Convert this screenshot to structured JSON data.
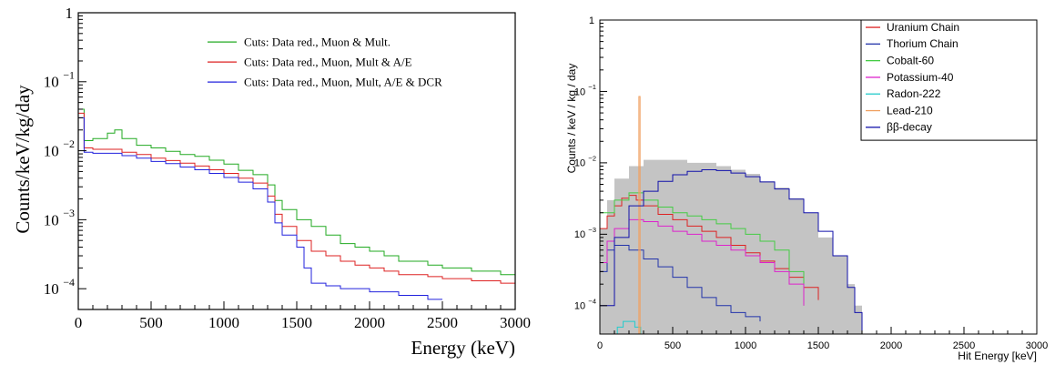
{
  "chart_data": [
    {
      "type": "line",
      "panel": "left",
      "title": "",
      "xlabel": "Energy (keV)",
      "ylabel": "Counts/keV/kg/day",
      "xlim": [
        0,
        3000
      ],
      "ylim": [
        5e-05,
        1
      ],
      "yscale": "log",
      "grid": false,
      "legend_position": "top-right",
      "x_ticks": [
        0,
        500,
        1000,
        1500,
        2000,
        2500,
        3000
      ],
      "x_tick_labels": [
        "0",
        "500",
        "1000",
        "1500",
        "2000",
        "2500",
        "3000"
      ],
      "y_ticks": [
        1,
        0.1,
        0.01,
        0.001,
        0.0001
      ],
      "y_tick_labels": [
        {
          "base": "1",
          "exp": ""
        },
        {
          "base": "10",
          "exp": "−1"
        },
        {
          "base": "10",
          "exp": "−2"
        },
        {
          "base": "10",
          "exp": "−3"
        },
        {
          "base": "10",
          "exp": "−4"
        }
      ],
      "series": [
        {
          "name": "Cuts: Data red., Muon & Mult.",
          "color": "#22aa22",
          "x": [
            0,
            40,
            100,
            200,
            250,
            300,
            400,
            500,
            600,
            700,
            800,
            900,
            1000,
            1100,
            1200,
            1300,
            1350,
            1400,
            1500,
            1600,
            1700,
            1800,
            1900,
            2000,
            2100,
            2200,
            2300,
            2400,
            2500,
            2600,
            2700,
            2800,
            2900,
            3000
          ],
          "y": [
            0.04,
            0.014,
            0.015,
            0.018,
            0.02,
            0.015,
            0.012,
            0.011,
            0.0098,
            0.0088,
            0.0083,
            0.0073,
            0.0064,
            0.0052,
            0.0045,
            0.0032,
            0.0019,
            0.0014,
            0.001,
            0.0008,
            0.0006,
            0.00045,
            0.0004,
            0.00035,
            0.0003,
            0.00025,
            0.00025,
            0.00022,
            0.0002,
            0.0002,
            0.00018,
            0.00018,
            0.00016,
            0.00016
          ]
        },
        {
          "name": "Cuts: Data red., Muon, Mult & A/E",
          "color": "#dd2222",
          "x": [
            0,
            40,
            100,
            200,
            300,
            400,
            500,
            600,
            700,
            800,
            900,
            1000,
            1100,
            1200,
            1300,
            1350,
            1400,
            1500,
            1600,
            1700,
            1800,
            1900,
            2000,
            2100,
            2200,
            2300,
            2400,
            2500,
            2600,
            2700,
            2800,
            2900,
            3000
          ],
          "y": [
            0.035,
            0.011,
            0.0105,
            0.0105,
            0.0095,
            0.0088,
            0.0078,
            0.0072,
            0.0066,
            0.006,
            0.0053,
            0.0047,
            0.004,
            0.0034,
            0.0022,
            0.0012,
            0.0008,
            0.0005,
            0.00035,
            0.0003,
            0.00025,
            0.00022,
            0.0002,
            0.00018,
            0.00016,
            0.00016,
            0.00015,
            0.00014,
            0.00014,
            0.00013,
            0.00013,
            0.00012,
            0.00012
          ]
        },
        {
          "name": "Cuts: Data red., Muon, Mult, A/E & DCR",
          "color": "#2222dd",
          "x": [
            0,
            40,
            100,
            200,
            300,
            400,
            500,
            600,
            700,
            800,
            900,
            1000,
            1100,
            1200,
            1300,
            1350,
            1400,
            1500,
            1550,
            1600,
            1700,
            1800,
            1900,
            2000,
            2100,
            2200,
            2300,
            2400,
            2500
          ],
          "y": [
            0.03,
            0.0095,
            0.0092,
            0.0092,
            0.0085,
            0.0078,
            0.007,
            0.0065,
            0.0058,
            0.0053,
            0.0047,
            0.0041,
            0.0035,
            0.0028,
            0.0018,
            0.0009,
            0.0006,
            0.0004,
            0.0002,
            0.00012,
            0.00011,
            0.0001,
            0.0001,
            9e-05,
            9e-05,
            8e-05,
            8e-05,
            7e-05,
            7e-05
          ]
        }
      ]
    },
    {
      "type": "line",
      "panel": "right",
      "title": "",
      "xlabel": "Hit Energy [keV]",
      "ylabel": "Counts / keV / kg / day",
      "xlim": [
        0,
        3000
      ],
      "ylim": [
        4e-05,
        1
      ],
      "yscale": "log",
      "grid": false,
      "legend_position": "top-right",
      "x_ticks": [
        0,
        500,
        1000,
        1500,
        2000,
        2500,
        3000
      ],
      "x_tick_labels": [
        "0",
        "500",
        "1000",
        "1500",
        "2000",
        "2500",
        "3000"
      ],
      "y_ticks": [
        1,
        0.1,
        0.01,
        0.001,
        0.0001
      ],
      "y_tick_labels": [
        {
          "base": "1",
          "exp": ""
        },
        {
          "base": "10",
          "exp": "−1"
        },
        {
          "base": "10",
          "exp": "−2"
        },
        {
          "base": "10",
          "exp": "−3"
        },
        {
          "base": "10",
          "exp": "−4"
        }
      ],
      "background_total": {
        "color": "#c4c4c4",
        "x": [
          0,
          50,
          100,
          200,
          300,
          400,
          500,
          600,
          700,
          800,
          900,
          1000,
          1100,
          1200,
          1300,
          1400,
          1500,
          1600,
          1700,
          1750,
          1800
        ],
        "y": [
          0.0012,
          0.003,
          0.006,
          0.009,
          0.011,
          0.011,
          0.011,
          0.01,
          0.01,
          0.009,
          0.008,
          0.007,
          0.0055,
          0.0045,
          0.0032,
          0.002,
          0.0009,
          0.0005,
          0.0002,
          0.0001,
          5e-05
        ]
      },
      "series": [
        {
          "name": "Uranium Chain",
          "color": "#dd2222",
          "x": [
            0,
            50,
            100,
            150,
            200,
            250,
            300,
            400,
            500,
            600,
            700,
            800,
            900,
            1000,
            1100,
            1200,
            1300,
            1400,
            1500
          ],
          "y": [
            0.0012,
            0.0018,
            0.0025,
            0.0032,
            0.0035,
            0.003,
            0.0025,
            0.0019,
            0.0016,
            0.0013,
            0.0011,
            0.0009,
            0.0007,
            0.00055,
            0.00042,
            0.00033,
            0.00025,
            0.00018,
            0.00012
          ]
        },
        {
          "name": "Thorium Chain",
          "color": "#2233aa",
          "x": [
            0,
            50,
            100,
            200,
            300,
            400,
            500,
            600,
            700,
            800,
            900,
            1000,
            1100
          ],
          "y": [
            0.0003,
            0.0006,
            0.0007,
            0.0006,
            0.00045,
            0.00035,
            0.00025,
            0.00018,
            0.00013,
            0.0001,
            8e-05,
            7e-05,
            6e-05
          ]
        },
        {
          "name": "Cobalt-60",
          "color": "#44cc44",
          "x": [
            0,
            100,
            200,
            300,
            400,
            500,
            600,
            700,
            800,
            900,
            1000,
            1100,
            1200,
            1300,
            1400
          ],
          "y": [
            0.002,
            0.003,
            0.0038,
            0.003,
            0.0024,
            0.002,
            0.0018,
            0.0016,
            0.0014,
            0.0012,
            0.001,
            0.0008,
            0.0006,
            0.0003,
            0.0001
          ]
        },
        {
          "name": "Potassium-40",
          "color": "#dd22cc",
          "x": [
            0,
            50,
            100,
            200,
            300,
            400,
            500,
            600,
            700,
            800,
            900,
            1000,
            1100,
            1200,
            1300,
            1400
          ],
          "y": [
            0.0004,
            0.0008,
            0.0012,
            0.0016,
            0.0015,
            0.0013,
            0.0011,
            0.001,
            0.0008,
            0.0007,
            0.0006,
            0.0005,
            0.0004,
            0.0003,
            0.0002,
            0.0001
          ]
        },
        {
          "name": "Radon-222",
          "color": "#22cccc",
          "x": [
            80,
            120,
            160,
            200,
            240,
            280
          ],
          "y": [
            4e-05,
            5e-05,
            6e-05,
            6e-05,
            5e-05,
            4e-05
          ]
        },
        {
          "name": "Lead-210",
          "color": "#f0a060",
          "x": [
            260,
            268,
            276
          ],
          "y": [
            4e-05,
            0.085,
            4e-05
          ]
        },
        {
          "name": "ββ-decay",
          "color": "#1111aa",
          "x": [
            0,
            100,
            200,
            300,
            400,
            500,
            600,
            700,
            800,
            900,
            1000,
            1100,
            1200,
            1300,
            1400,
            1500,
            1600,
            1700,
            1750,
            1800
          ],
          "y": [
            0.0001,
            0.0009,
            0.0025,
            0.004,
            0.0055,
            0.0068,
            0.0076,
            0.008,
            0.0078,
            0.0072,
            0.0064,
            0.0054,
            0.0043,
            0.0031,
            0.002,
            0.0011,
            0.0005,
            0.00018,
            8e-05,
            4e-05
          ]
        }
      ]
    }
  ]
}
